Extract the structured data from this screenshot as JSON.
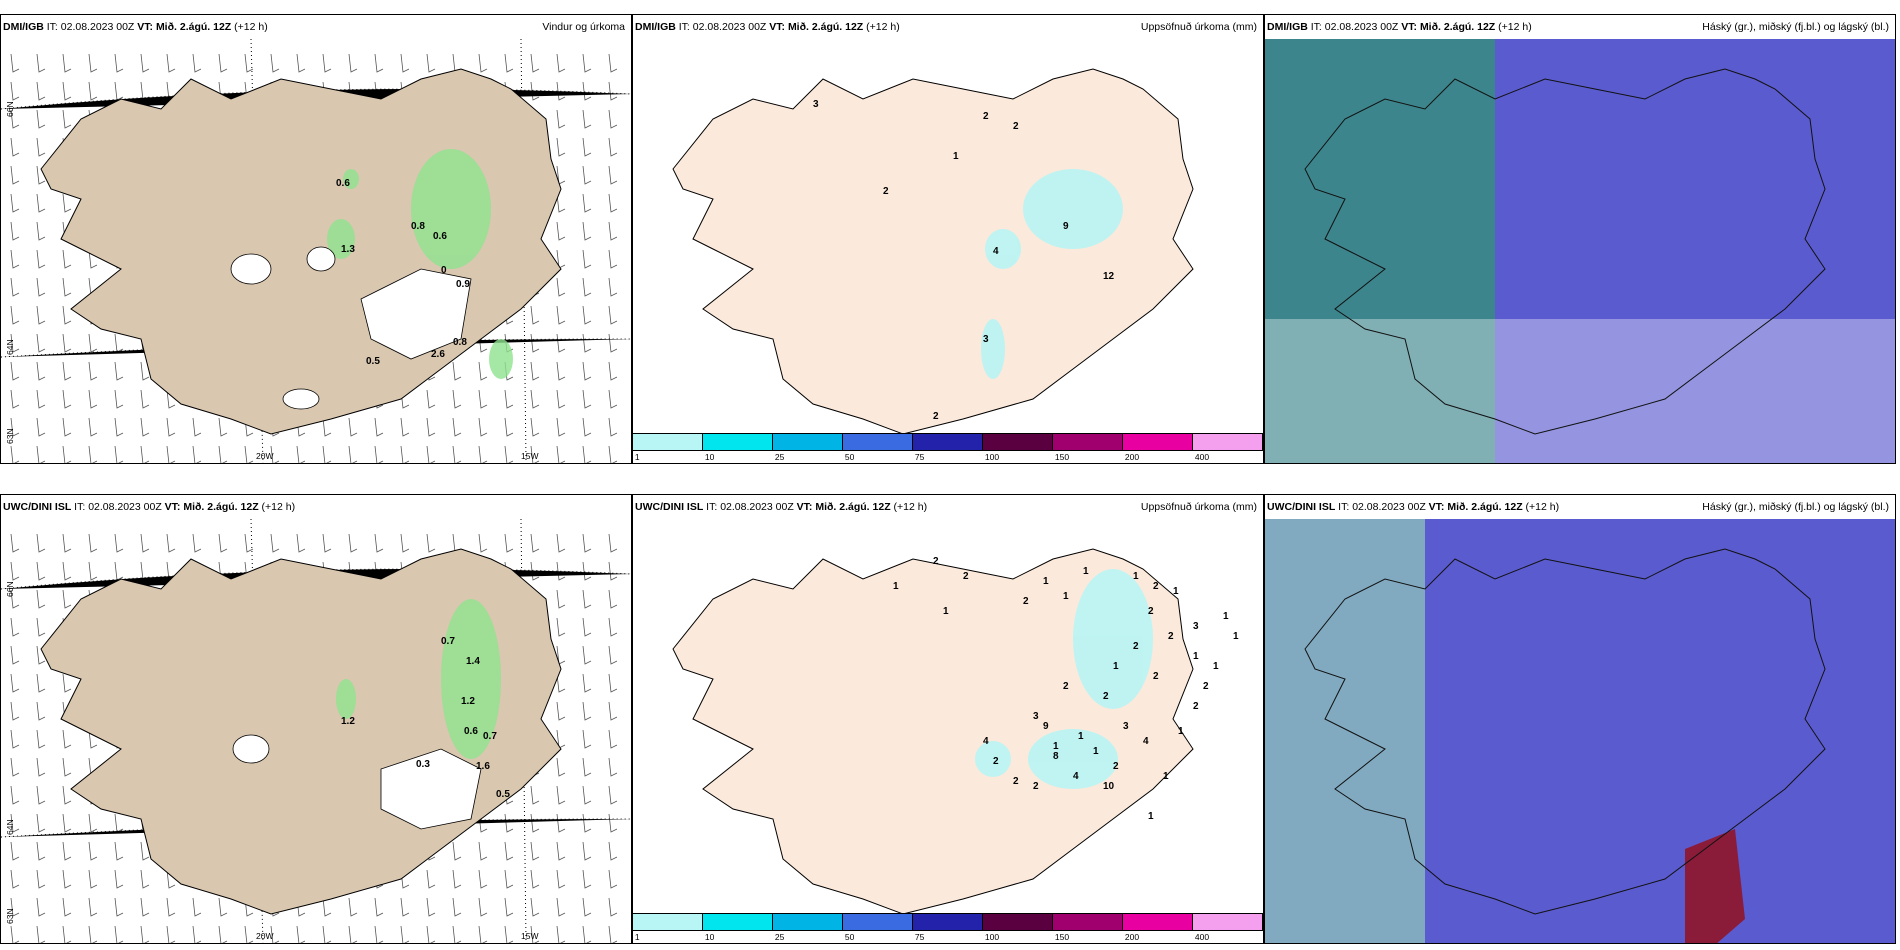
{
  "panels": [
    {
      "model": "DMI/IGB",
      "it_label": "IT:",
      "init": "02.08.2023 00Z",
      "vt_label": "VT:",
      "valid": "Mið. 2.ágú. 12Z",
      "lead": "(+12 h)",
      "title": "Vindur og úrkoma",
      "kind": "wind"
    },
    {
      "model": "DMI/IGB",
      "it_label": "IT:",
      "init": "02.08.2023 00Z",
      "vt_label": "VT:",
      "valid": "Mið. 2.ágú. 12Z",
      "lead": "(+12 h)",
      "title": "Uppsöfnuð úrkoma (mm)",
      "kind": "accum"
    },
    {
      "model": "DMI/IGB",
      "it_label": "IT:",
      "init": "02.08.2023 00Z",
      "vt_label": "VT:",
      "valid": "Mið. 2.ágú. 12Z",
      "lead": "(+12 h)",
      "title": "Háský (gr.), miðský (fj.bl.) og lágský (bl.)",
      "kind": "cloud"
    },
    {
      "model": "UWC/DINI ISL",
      "it_label": "IT:",
      "init": "02.08.2023 00Z",
      "vt_label": "VT:",
      "valid": "Mið. 2.ágú. 12Z",
      "lead": "(+12 h)",
      "title": "",
      "kind": "wind"
    },
    {
      "model": "UWC/DINI ISL",
      "it_label": "IT:",
      "init": "02.08.2023 00Z",
      "vt_label": "VT:",
      "valid": "Mið. 2.ágú. 12Z",
      "lead": "(+12 h)",
      "title": "Uppsöfnuð úrkoma (mm)",
      "kind": "accum"
    },
    {
      "model": "UWC/DINI ISL",
      "it_label": "IT:",
      "init": "02.08.2023 00Z",
      "vt_label": "VT:",
      "valid": "Mið. 2.ágú. 12Z",
      "lead": "(+12 h)",
      "title": "Háský (gr.), miðský (fj.bl.) og lágský (bl.)",
      "kind": "cloud"
    }
  ],
  "axes": {
    "lat_top": "66N",
    "lat_bottom": "64N",
    "lat_low": "63N",
    "lon_left": "20W",
    "lon_right": "15W"
  },
  "precip_values_top": [
    "0.6",
    "0.8",
    "0.6",
    "1.3",
    "0.9",
    "0",
    "0.8",
    "0.5",
    "2.6"
  ],
  "precip_values_bottom": [
    "0.7",
    "1.4",
    "1.2",
    "1.2",
    "0.6",
    "0.7",
    "1.6",
    "0.5",
    "0.3"
  ],
  "accum_values_top": [
    "3",
    "2",
    "2",
    "1",
    "2",
    "9",
    "4",
    "12",
    "3",
    "2"
  ],
  "accum_values_bottom": [
    "2",
    "2",
    "1",
    "1",
    "2",
    "1",
    "1",
    "1",
    "1",
    "2",
    "1",
    "2",
    "3",
    "2",
    "1",
    "2",
    "2",
    "1",
    "2",
    "2",
    "3",
    "1",
    "1",
    "1",
    "2",
    "3",
    "4",
    "1",
    "9",
    "8",
    "4",
    "2",
    "2",
    "2",
    "10",
    "1",
    "1",
    "2",
    "2",
    "1",
    "4",
    "1",
    "1"
  ],
  "colorbar": {
    "ticks": [
      "1",
      "10",
      "25",
      "50",
      "75",
      "100",
      "150",
      "200",
      "400"
    ],
    "colors": [
      "#b8f5f5",
      "#00e5ee",
      "#00b4e6",
      "#3a6be0",
      "#2222aa",
      "#5a0040",
      "#a0006e",
      "#e800a0",
      "#f4a0ee"
    ]
  },
  "colors": {
    "land": "#d9c7b0",
    "land_accum": "#fbe9db",
    "cloud_high": "#5b5bd0",
    "cloud_mid": "#3a8a84",
    "cloud_low": "#3fc0a0"
  }
}
